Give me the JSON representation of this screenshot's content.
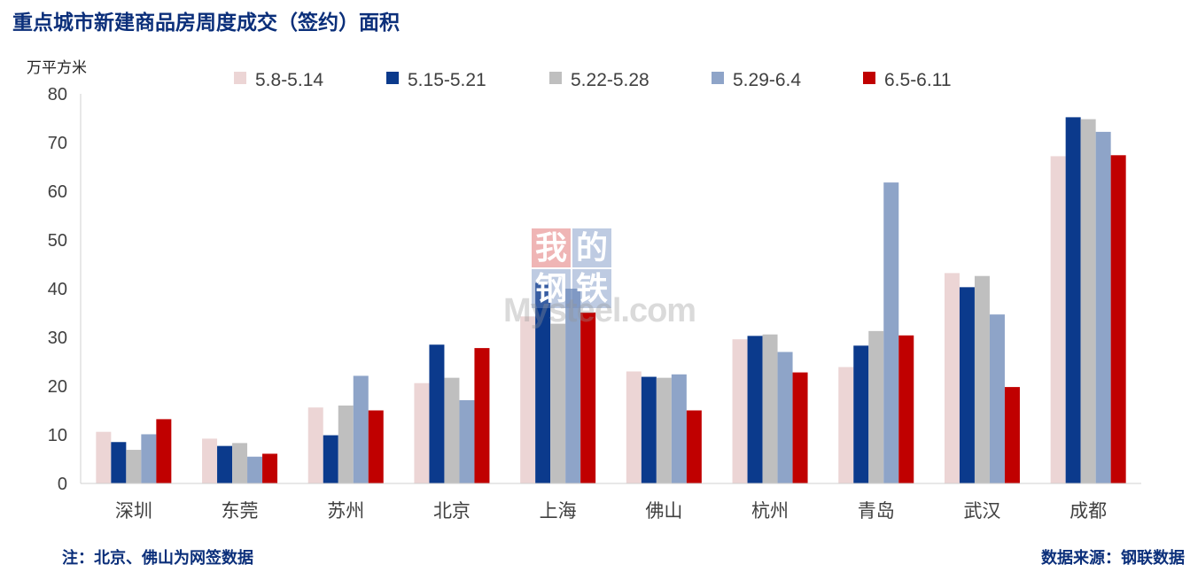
{
  "title": "重点城市新建商品房周度成交（签约）面积",
  "note": "注：北京、佛山为网签数据",
  "source": "数据来源：钢联数据",
  "watermark": {
    "chars": [
      "我",
      "的",
      "钢",
      "铁"
    ],
    "text": "Mysteel.com"
  },
  "chart_data": {
    "type": "bar",
    "ylabel": "万平方米",
    "ylim": [
      0,
      80
    ],
    "yticks": [
      0,
      10,
      20,
      30,
      40,
      50,
      60,
      70,
      80
    ],
    "grid": false,
    "legend_position": "top",
    "categories": [
      "深圳",
      "东莞",
      "苏州",
      "北京",
      "上海",
      "佛山",
      "杭州",
      "青岛",
      "武汉",
      "成都"
    ],
    "series": [
      {
        "name": "5.8-5.14",
        "color": "#ecd5d5",
        "values": [
          10.6,
          9.2,
          15.6,
          20.6,
          34.3,
          23.0,
          29.6,
          23.9,
          43.2,
          67.2
        ]
      },
      {
        "name": "5.15-5.21",
        "color": "#0b3a8c",
        "values": [
          8.5,
          7.7,
          9.9,
          28.5,
          41.2,
          21.9,
          30.3,
          28.3,
          40.3,
          75.2
        ]
      },
      {
        "name": "5.22-5.28",
        "color": "#bfbfbf",
        "values": [
          6.9,
          8.3,
          16.0,
          21.7,
          32.8,
          21.7,
          30.6,
          31.3,
          42.6,
          74.8
        ]
      },
      {
        "name": "5.29-6.4",
        "color": "#8ea4c8",
        "values": [
          10.1,
          5.5,
          22.1,
          17.1,
          40.0,
          22.4,
          27.0,
          61.8,
          34.7,
          72.2
        ]
      },
      {
        "name": "6.5-6.11",
        "color": "#c00000",
        "values": [
          13.2,
          6.1,
          15.0,
          27.8,
          35.1,
          15.0,
          22.8,
          30.4,
          19.8,
          67.4
        ]
      }
    ]
  }
}
